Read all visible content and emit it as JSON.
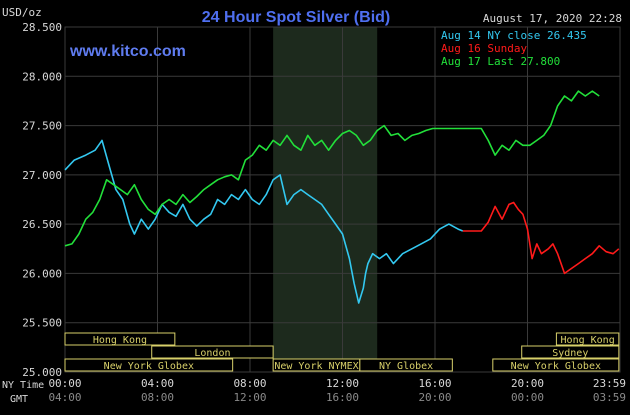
{
  "chart_data": {
    "type": "line",
    "title": "24 Hour Spot Silver (Bid)",
    "watermark": "www.kitco.com",
    "y_unit": "USD/oz",
    "timestamp": "August 17, 2020 22:28",
    "ylim": [
      25.0,
      28.5
    ],
    "y_ticks": [
      "28.500",
      "28.000",
      "27.500",
      "27.000",
      "26.500",
      "26.000",
      "25.500",
      "25.000"
    ],
    "x_domain": [
      0,
      24
    ],
    "ny_time_label": "NY Time",
    "gmt_label": "GMT",
    "x_ticks_ny": [
      "00:00",
      "04:00",
      "08:00",
      "12:00",
      "16:00",
      "20:00",
      "23:59"
    ],
    "x_ticks_gmt": [
      "04:00",
      "08:00",
      "12:00",
      "16:00",
      "20:00",
      "00:00",
      "03:59"
    ],
    "grid": true,
    "legend": [
      {
        "text": "Aug 14 NY close 26.435",
        "color": "#33c8f0"
      },
      {
        "text": "Aug 16 Sunday",
        "color": "#ff1a1a"
      },
      {
        "text": "Aug 17 Last 27.800",
        "color": "#22e03a"
      }
    ],
    "series": [
      {
        "key": "aug14",
        "color": "#33c8f0",
        "x": [
          0.0,
          0.4,
          0.9,
          1.3,
          1.6,
          1.9,
          2.2,
          2.5,
          2.8,
          3.0,
          3.3,
          3.6,
          3.9,
          4.2,
          4.5,
          4.8,
          5.1,
          5.4,
          5.7,
          6.0,
          6.3,
          6.6,
          6.9,
          7.2,
          7.5,
          7.8,
          8.1,
          8.4,
          8.7,
          9.0,
          9.3,
          9.6,
          9.9,
          10.2,
          10.5,
          10.8,
          11.1,
          11.4,
          11.7,
          12.0,
          12.3,
          12.5,
          12.7,
          12.9,
          13.0,
          13.1,
          13.3,
          13.6,
          13.9,
          14.2,
          14.6,
          15.0,
          15.4,
          15.8,
          16.2,
          16.6,
          17.0,
          17.2
        ],
        "y": [
          27.05,
          27.15,
          27.2,
          27.25,
          27.35,
          27.1,
          26.85,
          26.75,
          26.5,
          26.4,
          26.55,
          26.45,
          26.55,
          26.7,
          26.62,
          26.58,
          26.7,
          26.55,
          26.48,
          26.55,
          26.6,
          26.75,
          26.7,
          26.8,
          26.75,
          26.85,
          26.75,
          26.7,
          26.8,
          26.95,
          27.0,
          26.7,
          26.8,
          26.85,
          26.8,
          26.75,
          26.7,
          26.6,
          26.5,
          26.4,
          26.15,
          25.9,
          25.7,
          25.85,
          26.0,
          26.1,
          26.2,
          26.15,
          26.2,
          26.1,
          26.2,
          26.25,
          26.3,
          26.35,
          26.45,
          26.5,
          26.45,
          26.43
        ]
      },
      {
        "key": "aug16",
        "color": "#ff1a1a",
        "x": [
          17.2,
          17.6,
          18.0,
          18.3,
          18.6,
          18.9,
          19.2,
          19.4,
          19.6,
          19.8,
          20.0,
          20.2,
          20.4,
          20.6,
          20.9,
          21.1,
          21.3,
          21.6,
          21.9,
          22.2,
          22.5,
          22.8,
          23.1,
          23.4,
          23.7,
          23.95
        ],
        "y": [
          26.43,
          26.43,
          26.43,
          26.52,
          26.68,
          26.55,
          26.7,
          26.72,
          26.65,
          26.6,
          26.45,
          26.15,
          26.3,
          26.2,
          26.25,
          26.3,
          26.2,
          26.0,
          26.05,
          26.1,
          26.15,
          26.2,
          26.28,
          26.22,
          26.2,
          26.25
        ]
      },
      {
        "key": "aug17",
        "color": "#22e03a",
        "x": [
          0.0,
          0.3,
          0.6,
          0.9,
          1.2,
          1.5,
          1.8,
          2.1,
          2.4,
          2.7,
          3.0,
          3.3,
          3.6,
          3.9,
          4.2,
          4.5,
          4.8,
          5.1,
          5.4,
          5.7,
          6.0,
          6.3,
          6.6,
          6.9,
          7.2,
          7.5,
          7.8,
          8.1,
          8.4,
          8.7,
          9.0,
          9.3,
          9.6,
          9.9,
          10.2,
          10.5,
          10.8,
          11.1,
          11.4,
          11.7,
          12.0,
          12.3,
          12.6,
          12.9,
          13.2,
          13.5,
          13.8,
          14.1,
          14.4,
          14.7,
          15.0,
          15.3,
          15.6,
          15.9,
          16.2,
          16.5,
          16.8,
          17.1,
          17.4,
          17.7,
          18.0,
          18.3,
          18.6,
          18.9,
          19.2,
          19.5,
          19.8,
          20.1,
          20.4,
          20.7,
          21.0,
          21.3,
          21.6,
          21.9,
          22.2,
          22.5,
          22.8,
          23.1
        ],
        "y": [
          26.28,
          26.3,
          26.4,
          26.55,
          26.62,
          26.75,
          26.95,
          26.9,
          26.85,
          26.8,
          26.9,
          26.75,
          26.65,
          26.6,
          26.7,
          26.75,
          26.7,
          26.8,
          26.72,
          26.78,
          26.85,
          26.9,
          26.95,
          26.98,
          27.0,
          26.95,
          27.15,
          27.2,
          27.3,
          27.25,
          27.35,
          27.3,
          27.4,
          27.3,
          27.25,
          27.4,
          27.3,
          27.35,
          27.25,
          27.35,
          27.42,
          27.45,
          27.4,
          27.3,
          27.35,
          27.45,
          27.5,
          27.4,
          27.42,
          27.35,
          27.4,
          27.42,
          27.45,
          27.47,
          27.47,
          27.47,
          27.47,
          27.47,
          27.47,
          27.47,
          27.47,
          27.35,
          27.2,
          27.3,
          27.25,
          27.35,
          27.3,
          27.3,
          27.35,
          27.4,
          27.5,
          27.7,
          27.8,
          27.75,
          27.85,
          27.8,
          27.85,
          27.8
        ]
      }
    ],
    "sessions": [
      {
        "label": "Hong Kong",
        "x0": 0.0,
        "x1": 4.75,
        "row": 0
      },
      {
        "label": "London",
        "x0": 3.75,
        "x1": 9.0,
        "row": 1
      },
      {
        "label": "New York Globex",
        "x0": 0.0,
        "x1": 7.25,
        "row": 2
      },
      {
        "label": "New York NYMEX",
        "x0": 9.0,
        "x1": 12.75,
        "row": 2
      },
      {
        "label": "NY Globex",
        "x0": 12.75,
        "x1": 16.75,
        "row": 2
      },
      {
        "label": "Hong Kong",
        "x0": 21.25,
        "x1": 23.95,
        "row": 0
      },
      {
        "label": "Sydney",
        "x0": 19.75,
        "x1": 23.95,
        "row": 1
      },
      {
        "label": "New York Globex",
        "x0": 18.5,
        "x1": 23.95,
        "row": 2
      }
    ],
    "shaded_region": [
      9.0,
      13.5
    ],
    "colors": {
      "background": "#000000",
      "grid": "#3a3a3a",
      "shade": "#1d2a1d",
      "title": "#4f6ff0",
      "watermark": "#5f7cf0",
      "axis_text": "#d8d8d8",
      "session_fill": "#000000",
      "session_stroke": "#d8d06a",
      "session_text": "#d8d06a"
    }
  }
}
